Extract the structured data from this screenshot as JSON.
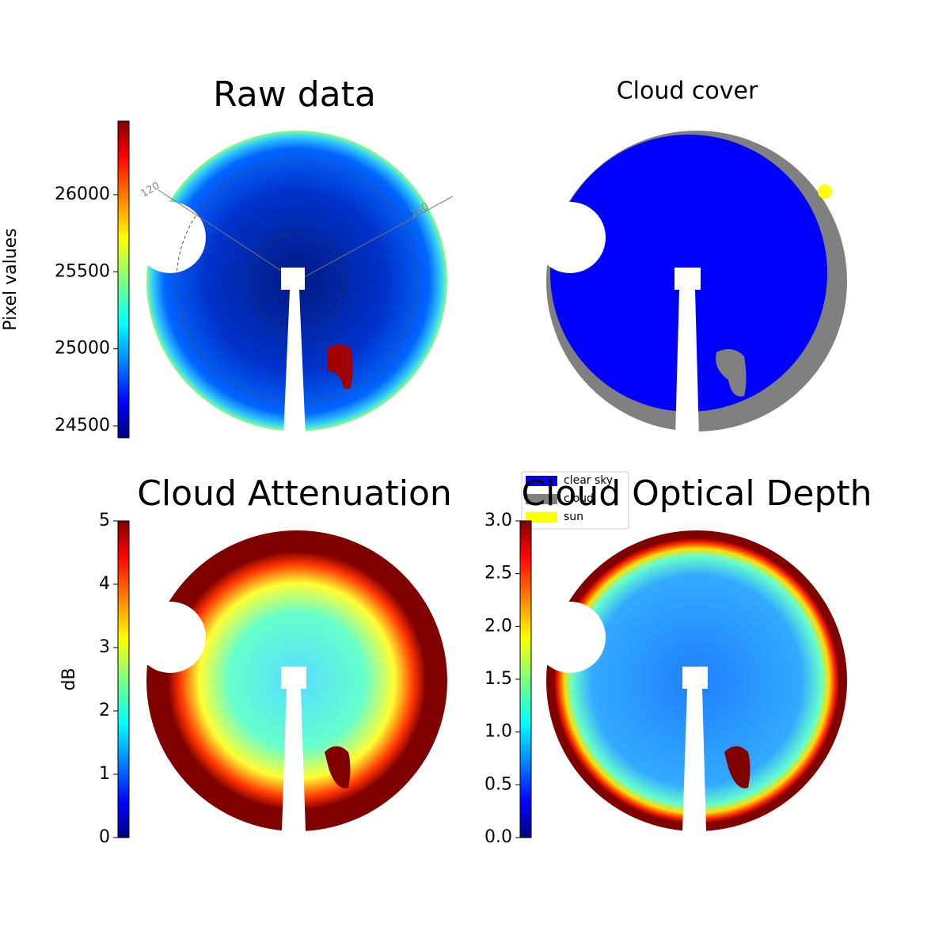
{
  "chart_data": [
    {
      "type": "image",
      "title": "Raw data",
      "colorbar_label": "Pixel values",
      "colormap": "jet",
      "ylim": [
        24423,
        26477
      ],
      "yticks": [
        24500,
        25000,
        25500,
        26000
      ],
      "annotations": [
        "120",
        "240"
      ]
    },
    {
      "type": "image",
      "title": "Cloud cover",
      "legend": [
        {
          "name": "clear sky",
          "color": "#0000ff"
        },
        {
          "name": "cloud",
          "color": "#808080"
        },
        {
          "name": "sun",
          "color": "#ffff00"
        }
      ]
    },
    {
      "type": "image",
      "title": "Cloud Attenuation",
      "colorbar_label": "dB",
      "colormap": "jet",
      "ylim": [
        0,
        5
      ],
      "yticks": [
        0,
        1,
        2,
        3,
        4,
        5
      ]
    },
    {
      "type": "image",
      "title": "Cloud Optical Depth",
      "colormap": "jet",
      "ylim": [
        0,
        3
      ],
      "yticks": [
        {
          "value": 0,
          "label": "0.0"
        },
        0.5,
        {
          "value": 1,
          "label": "1.0"
        },
        1.5,
        {
          "value": 2,
          "label": "2.0"
        },
        2.5,
        {
          "value": 3,
          "label": "3.0"
        }
      ]
    }
  ]
}
